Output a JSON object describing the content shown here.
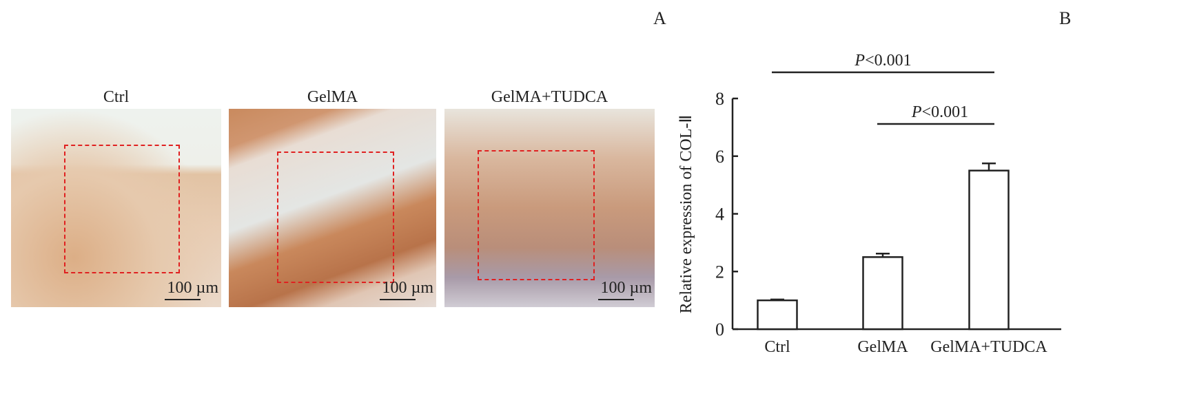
{
  "panel_labels": {
    "a": "A",
    "b": "B"
  },
  "micrographs": [
    {
      "title": "Ctrl",
      "scale_bar": "100 µm"
    },
    {
      "title": "GelMA",
      "scale_bar": "100 µm"
    },
    {
      "title": "GelMA+TUDCA",
      "scale_bar": "100 µm"
    }
  ],
  "chart_data": {
    "type": "bar",
    "categories": [
      "Ctrl",
      "GelMA",
      "GelMA+TUDCA"
    ],
    "values": [
      1.0,
      2.5,
      5.5
    ],
    "errors": [
      0.03,
      0.12,
      0.25
    ],
    "ylabel": "Relative expression of COL-Ⅱ",
    "xlabel": "",
    "ylim": [
      0,
      8
    ],
    "yticks": [
      "0",
      "2",
      "4",
      "6",
      "8"
    ],
    "grid": false,
    "annotations": [
      {
        "from": "Ctrl",
        "to": "GelMA+TUDCA",
        "p_symbol": "P",
        "p_text": "<0.001"
      },
      {
        "from": "GelMA",
        "to": "GelMA+TUDCA",
        "p_symbol": "P",
        "p_text": "<0.001"
      }
    ]
  }
}
